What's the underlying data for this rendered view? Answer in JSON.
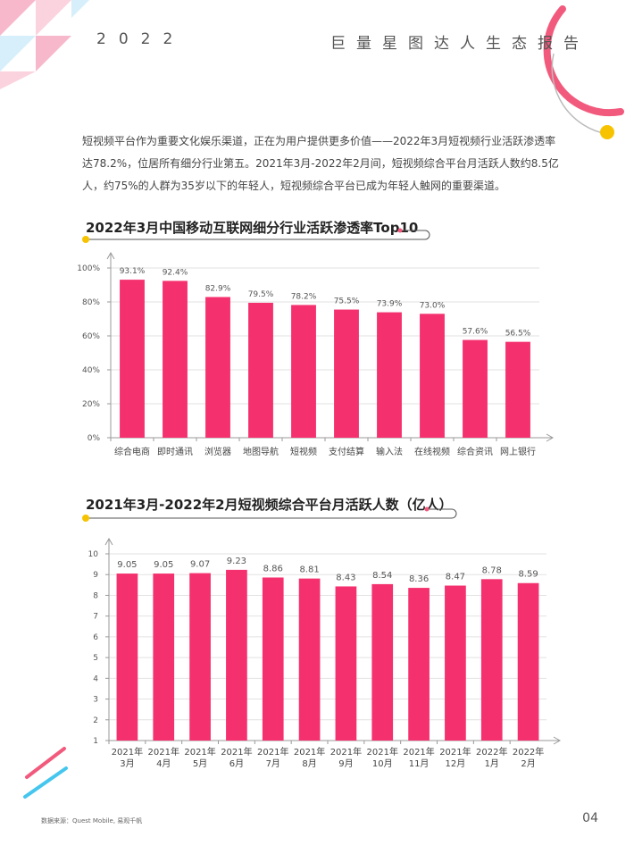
{
  "header": {
    "year": "2022",
    "title": "巨量星图达人生态报告"
  },
  "intro": "短视频平台作为重要文化娱乐渠道，正在为用户提供更多价值——2022年3月短视频行业活跃渗透率达78.2%，位居所有细分行业第五。2021年3月-2022年2月间，短视频综合平台月活跃人数约8.5亿人，约75%的人群为35岁以下的年轻人，短视频综合平台已成为年轻人触网的重要渠道。",
  "colors": {
    "bar": "#F5306E",
    "accent_yellow": "#F7C300",
    "accent_pink": "#F25A7D",
    "accent_blue": "#45C6EE",
    "grid": "#E2E2E2",
    "axis": "#999999"
  },
  "chart_data": [
    {
      "type": "bar",
      "title": "2022年3月中国移动互联网细分行业活跃渗透率Top10",
      "categories": [
        "综合电商",
        "即时通讯",
        "浏览器",
        "地图导航",
        "短视频",
        "支付结算",
        "输入法",
        "在线视频",
        "综合资讯",
        "网上银行"
      ],
      "values": [
        93.1,
        92.4,
        82.9,
        79.5,
        78.2,
        75.5,
        73.9,
        73.0,
        57.6,
        56.5
      ],
      "value_labels": [
        "93.1%",
        "92.4%",
        "82.9%",
        "79.5%",
        "78.2%",
        "75.5%",
        "73.9%",
        "73.0%",
        "57.6%",
        "56.5%"
      ],
      "yticks": [
        "0%",
        "20%",
        "40%",
        "60%",
        "80%",
        "100%"
      ],
      "ylim": [
        0,
        100
      ],
      "grid": true
    },
    {
      "type": "bar",
      "title": "2021年3月-2022年2月短视频综合平台月活跃人数（亿人）",
      "categories": [
        [
          "2021年",
          "3月"
        ],
        [
          "2021年",
          "4月"
        ],
        [
          "2021年",
          "5月"
        ],
        [
          "2021年",
          "6月"
        ],
        [
          "2021年",
          "7月"
        ],
        [
          "2021年",
          "8月"
        ],
        [
          "2021年",
          "9月"
        ],
        [
          "2021年",
          "10月"
        ],
        [
          "2021年",
          "11月"
        ],
        [
          "2021年",
          "12月"
        ],
        [
          "2022年",
          "1月"
        ],
        [
          "2022年",
          "2月"
        ]
      ],
      "values": [
        9.05,
        9.05,
        9.07,
        9.23,
        8.86,
        8.81,
        8.43,
        8.54,
        8.36,
        8.47,
        8.78,
        8.59
      ],
      "value_labels": [
        "9.05",
        "9.05",
        "9.07",
        "9.23",
        "8.86",
        "8.81",
        "8.43",
        "8.54",
        "8.36",
        "8.47",
        "8.78",
        "8.59"
      ],
      "yticks": [
        "1",
        "2",
        "3",
        "4",
        "5",
        "6",
        "7",
        "8",
        "9",
        "10"
      ],
      "ylim": [
        1,
        10
      ],
      "grid": true
    }
  ],
  "footer": {
    "source": "数据来源：Quest Mobile, 易观千帆",
    "page_number": "04"
  }
}
